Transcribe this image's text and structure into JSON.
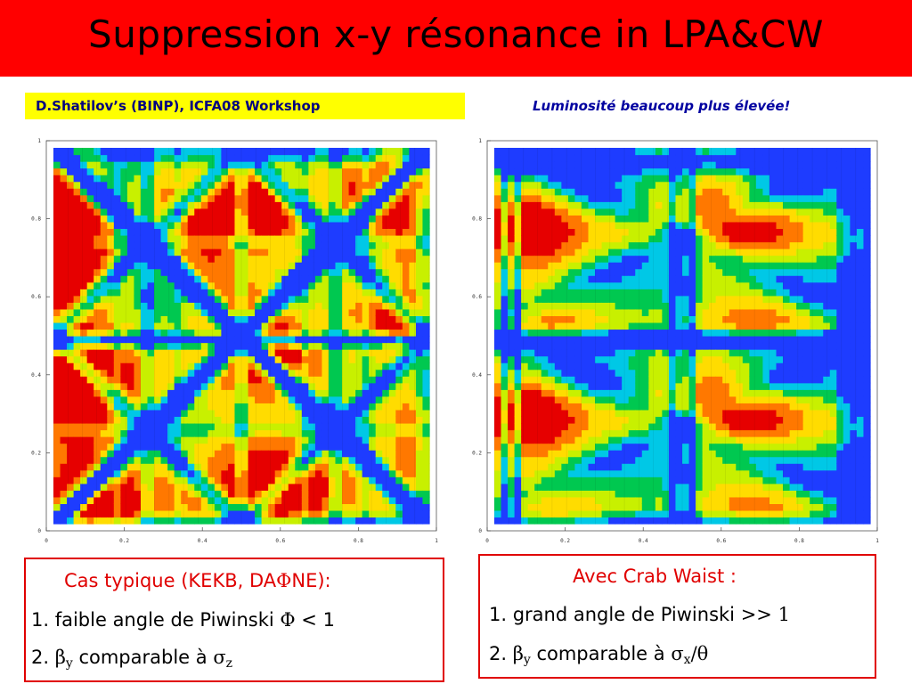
{
  "slide": {
    "title": "Suppression x-y résonance in LPA&CW",
    "credit": "D.Shatilov’s (BINP), ICFA08 Workshop",
    "luminosity_note": "Luminosité beaucoup plus élevée!"
  },
  "plots": {
    "left": {
      "x_ticks": [
        "0",
        "0.2",
        "0.4",
        "0.6",
        "0.8",
        "1"
      ],
      "y_ticks": [
        "0",
        "0.2",
        "0.4",
        "0.6",
        "0.8",
        "1"
      ]
    },
    "right": {
      "x_ticks": [
        "0",
        "0.2",
        "0.4",
        "0.6",
        "0.8",
        "1"
      ],
      "y_ticks": [
        "0",
        "0.2",
        "0.4",
        "0.6",
        "0.8",
        "1"
      ]
    }
  },
  "colors": {
    "title_bar": "#ff0000",
    "credit_bg": "#ffff00",
    "box_border": "#e00000",
    "colormap": [
      "#1e3cff",
      "#00c8e6",
      "#00c850",
      "#c8f000",
      "#ffdc00",
      "#ff7800",
      "#e60000"
    ]
  },
  "left_box": {
    "title_prefix": "Cas typique (KEKB, DA",
    "title_symbol": "Φ",
    "title_suffix": "NE):",
    "line1_text": "1. faible angle de Piwinski ",
    "line1_symbol": "Φ",
    "line1_suffix": " < 1",
    "line2_prefix": "2. ",
    "line2_beta": "β",
    "line2_beta_sub": "y",
    "line2_text": " comparable à ",
    "line2_sigma": "σ",
    "line2_sigma_sub": "z"
  },
  "right_box": {
    "title": "Avec Crab Waist :",
    "line1_text": "1. grand angle de Piwinski ",
    "line1_symbol": ">> 1",
    "line2_prefix": "2. ",
    "line2_beta": "β",
    "line2_beta_sub": "y",
    "line2_text": " comparable à ",
    "line2_sigma": "σ",
    "line2_sigma_sub": "x",
    "line2_theta": "/θ"
  }
}
